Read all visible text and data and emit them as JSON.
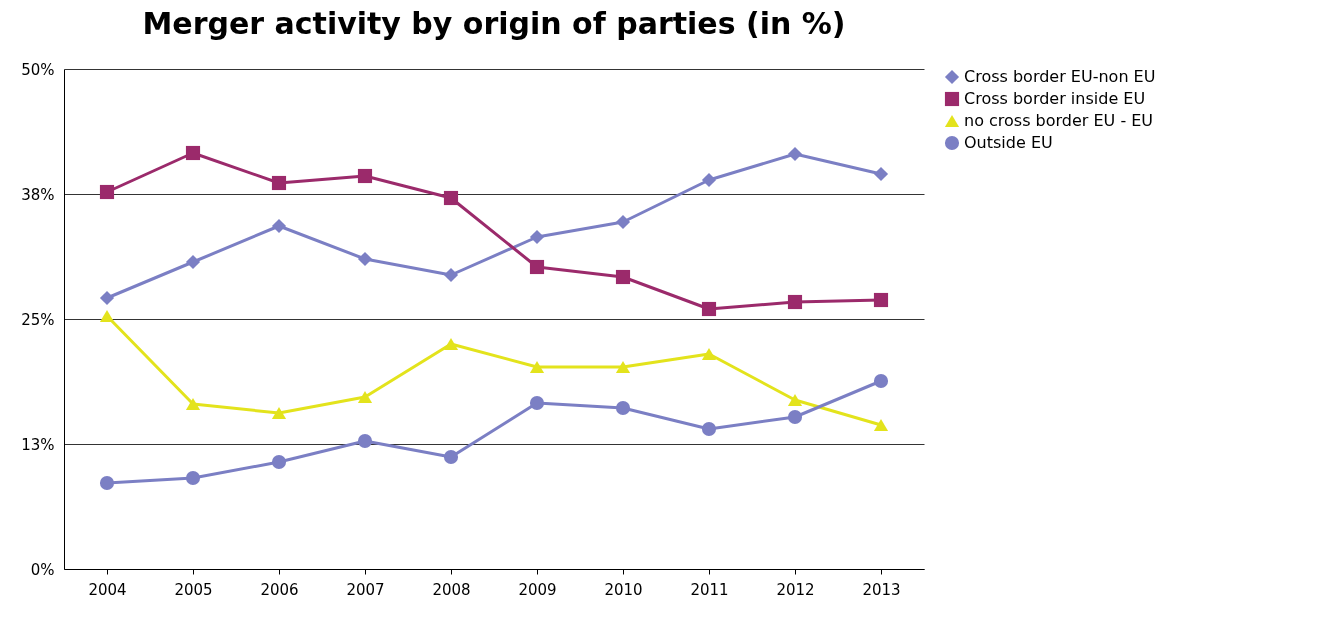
{
  "chart_data": {
    "type": "line",
    "title": "Merger activity by origin of parties (in %)",
    "categories": [
      "2004",
      "2005",
      "2006",
      "2007",
      "2008",
      "2009",
      "2010",
      "2011",
      "2012",
      "2013"
    ],
    "series": [
      {
        "name": "Cross border EU-non EU",
        "color": "#7b7fc4",
        "marker": "diamond",
        "values": [
          27.1,
          30.7,
          34.3,
          31.0,
          29.4,
          33.2,
          34.7,
          38.9,
          41.5,
          39.5
        ]
      },
      {
        "name": "Cross border inside EU",
        "color": "#9b2a6b",
        "marker": "square",
        "values": [
          37.7,
          41.6,
          38.6,
          39.3,
          37.1,
          30.2,
          29.2,
          26.0,
          26.7,
          26.9
        ]
      },
      {
        "name": "no cross border EU - EU",
        "color": "#e3e31c",
        "marker": "triangle",
        "values": [
          25.3,
          16.5,
          15.6,
          17.2,
          22.5,
          20.2,
          20.2,
          21.5,
          16.9,
          14.4
        ]
      },
      {
        "name": "Outside EU",
        "color": "#7b7fc4",
        "marker": "circle",
        "values": [
          8.6,
          9.1,
          10.7,
          12.8,
          11.2,
          16.6,
          16.1,
          14.0,
          15.2,
          18.8
        ]
      }
    ],
    "ylim": [
      0,
      50
    ],
    "yticks": [
      {
        "value": 0,
        "label": "0%"
      },
      {
        "value": 12.5,
        "label": "13%"
      },
      {
        "value": 25,
        "label": "25%"
      },
      {
        "value": 37.5,
        "label": "38%"
      },
      {
        "value": 50,
        "label": "50%"
      }
    ],
    "grid": "y",
    "legend": "right"
  }
}
